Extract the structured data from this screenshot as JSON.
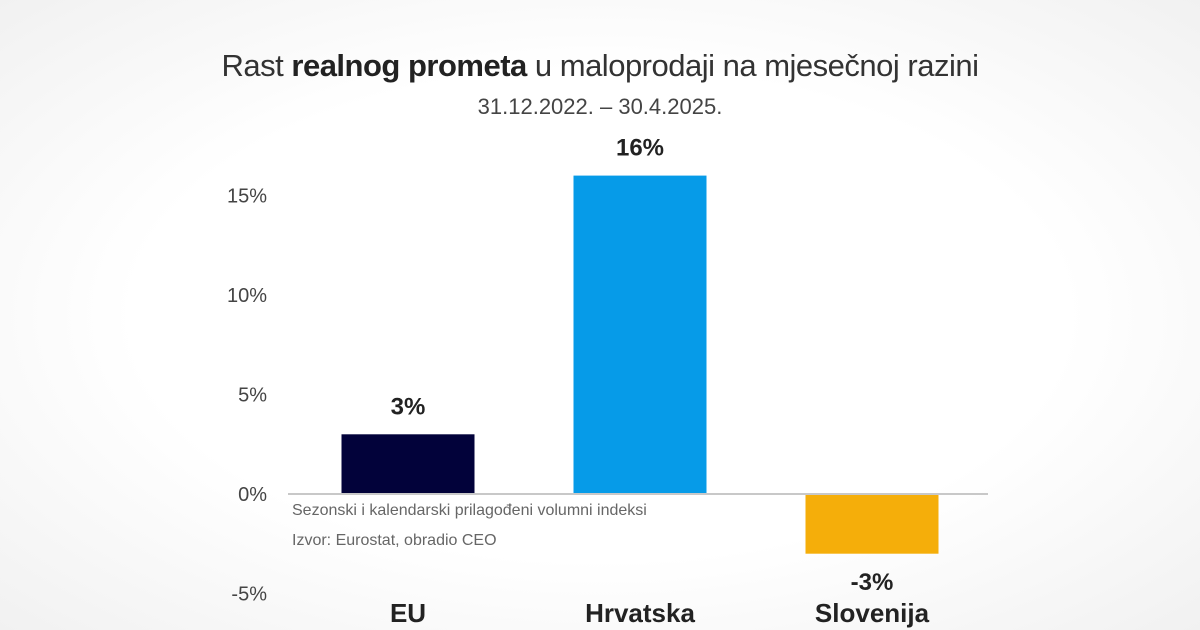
{
  "chart_data": {
    "type": "bar",
    "title_parts": {
      "pre": "Rast ",
      "bold": "realnog prometa",
      "post": " u maloprodaji na mjesečnoj razini"
    },
    "subtitle": "31.12.2022. – 30.4.2025.",
    "categories": [
      "EU",
      "Hrvatska",
      "Slovenija"
    ],
    "values": [
      3,
      16,
      -3
    ],
    "data_labels": [
      "3%",
      "16%",
      "-3%"
    ],
    "colors": [
      "#02023a",
      "#069be8",
      "#f5ae0a"
    ],
    "ylim": [
      -5,
      16
    ],
    "yticks": [
      -5,
      0,
      5,
      10,
      15
    ],
    "ytick_labels": [
      "-5%",
      "0%",
      "5%",
      "10%",
      "15%"
    ],
    "grid": false,
    "notes": [
      "Sezonski i kalendarski prilagođeni volumni indeksi",
      "Izvor: Eurostat, obradio CEO"
    ]
  }
}
